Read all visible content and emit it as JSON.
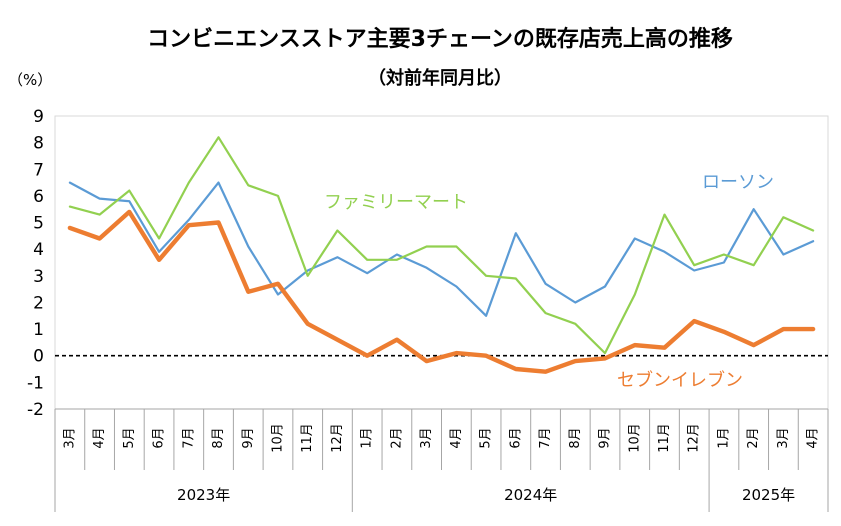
{
  "chart_data": {
    "type": "line",
    "title": "コンビニエンスストア主要3チェーンの既存店売上高の推移",
    "subtitle": "（対前年同月比）",
    "ylabel": "（%）",
    "ylim": [
      -2,
      9
    ],
    "yticks": [
      9,
      8,
      7,
      6,
      5,
      4,
      3,
      2,
      1,
      0,
      -1,
      -2
    ],
    "reference_line": {
      "value": 0,
      "style": "dashed"
    },
    "categories": [
      "3月",
      "4月",
      "5月",
      "6月",
      "7月",
      "8月",
      "9月",
      "10月",
      "11月",
      "12月",
      "1月",
      "2月",
      "3月",
      "4月",
      "5月",
      "6月",
      "7月",
      "8月",
      "9月",
      "10月",
      "11月",
      "12月",
      "1月",
      "2月",
      "3月",
      "4月"
    ],
    "years": [
      {
        "label": "2023年",
        "start": 0,
        "end": 9
      },
      {
        "label": "2024年",
        "start": 10,
        "end": 21
      },
      {
        "label": "2025年",
        "start": 22,
        "end": 25
      }
    ],
    "series": [
      {
        "name": "ローソン",
        "color": "#5B9BD5",
        "values": [
          6.5,
          5.9,
          5.8,
          3.9,
          5.1,
          6.5,
          4.1,
          2.3,
          3.2,
          3.7,
          3.1,
          3.8,
          3.3,
          2.6,
          1.5,
          4.6,
          2.7,
          2.0,
          2.6,
          4.4,
          3.9,
          3.2,
          3.5,
          5.5,
          3.8,
          4.3
        ]
      },
      {
        "name": "ファミリーマート",
        "color": "#92D050",
        "values": [
          5.6,
          5.3,
          6.2,
          4.4,
          6.5,
          8.2,
          6.4,
          6.0,
          3.0,
          4.7,
          3.6,
          3.6,
          4.1,
          4.1,
          3.0,
          2.9,
          1.6,
          1.2,
          0.1,
          2.3,
          5.3,
          3.4,
          3.8,
          3.4,
          5.2,
          4.7
        ]
      },
      {
        "name": "セブンイレブン",
        "color": "#ED7D31",
        "values": [
          4.8,
          4.4,
          5.4,
          3.6,
          4.9,
          5.0,
          2.4,
          2.7,
          1.2,
          0.6,
          0.0,
          0.6,
          -0.2,
          0.1,
          0.0,
          -0.5,
          -0.6,
          -0.2,
          -0.1,
          0.4,
          0.3,
          1.3,
          0.9,
          0.4,
          1.0,
          1.0
        ]
      }
    ]
  }
}
